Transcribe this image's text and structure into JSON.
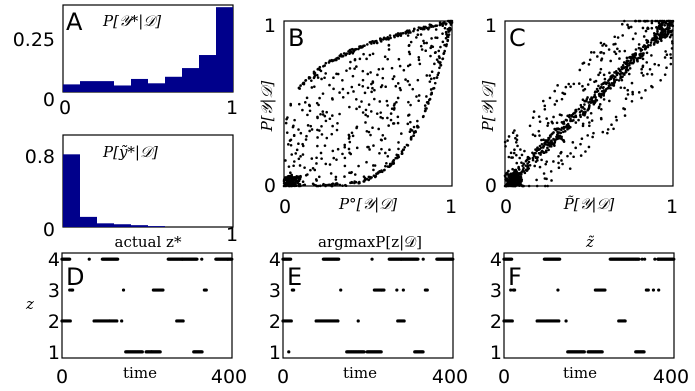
{
  "colors": {
    "bar": "#00008b",
    "point": "#000000",
    "axis": "#000000"
  },
  "chart_data": [
    {
      "panel": "A",
      "type": "bar",
      "title": "P[𝒴*|𝒟]",
      "bins": [
        0.05,
        0.15,
        0.25,
        0.35,
        0.45,
        0.55,
        0.65,
        0.75,
        0.85,
        0.95
      ],
      "values": [
        0.035,
        0.05,
        0.05,
        0.03,
        0.06,
        0.04,
        0.07,
        0.11,
        0.17,
        0.39
      ],
      "xlim": [
        0,
        1
      ],
      "ylim": [
        0,
        0.4
      ],
      "xticks": [
        "0",
        "1"
      ],
      "yticks": [
        "0",
        "0.25"
      ]
    },
    {
      "panel": "A2",
      "type": "bar",
      "title": "P[ỹ*|𝒟]",
      "bins": [
        0.05,
        0.15,
        0.25,
        0.35,
        0.45,
        0.55,
        0.65,
        0.75,
        0.85,
        0.95
      ],
      "values": [
        0.79,
        0.11,
        0.04,
        0.03,
        0.02,
        0.01,
        0.0,
        0.0,
        0.0,
        0.0
      ],
      "xlim": [
        0,
        1
      ],
      "ylim": [
        0,
        1.0
      ],
      "xticks": [
        "0",
        "1"
      ],
      "yticks": [
        "0",
        "0.8"
      ]
    },
    {
      "panel": "B",
      "type": "scatter",
      "xlabel": "P°[𝒴|𝒟]",
      "ylabel": "P[𝒴|𝒟]",
      "xlim": [
        0,
        1
      ],
      "ylim": [
        0,
        1
      ],
      "xticks": [
        "0",
        "1"
      ],
      "yticks": [
        "0",
        "1"
      ]
    },
    {
      "panel": "C",
      "type": "scatter",
      "xlabel": "P̃[𝒴|𝒟]",
      "ylabel": "P[𝒴|𝒟]",
      "xlim": [
        0,
        1
      ],
      "ylim": [
        0,
        1
      ],
      "xticks": [
        "0",
        "1"
      ],
      "yticks": [
        "0",
        "1"
      ]
    },
    {
      "panel": "D",
      "type": "scatter",
      "title": "actual z*",
      "xlabel": "time",
      "ylabel": "z",
      "xlim": [
        0,
        400
      ],
      "ylim": [
        0.8,
        4.2
      ],
      "xticks": [
        "0",
        "400"
      ],
      "yticks": [
        "1",
        "2",
        "3",
        "4"
      ],
      "segments": [
        {
          "state": 4,
          "from": 0,
          "to": 18
        },
        {
          "state": 4,
          "from": 95,
          "to": 132
        },
        {
          "state": 4,
          "from": 250,
          "to": 318
        },
        {
          "state": 4,
          "from": 362,
          "to": 400
        },
        {
          "state": 3,
          "from": 22,
          "to": 26
        },
        {
          "state": 3,
          "from": 215,
          "to": 238
        },
        {
          "state": 3,
          "from": 335,
          "to": 340
        },
        {
          "state": 2,
          "from": 0,
          "to": 20
        },
        {
          "state": 2,
          "from": 78,
          "to": 130
        },
        {
          "state": 2,
          "from": 270,
          "to": 285
        },
        {
          "state": 1,
          "from": 150,
          "to": 190
        },
        {
          "state": 1,
          "from": 198,
          "to": 232
        },
        {
          "state": 1,
          "from": 310,
          "to": 330
        }
      ]
    },
    {
      "panel": "E",
      "type": "scatter",
      "title": "argmaxP[z|𝒟]",
      "xlabel": "time",
      "ylabel": "",
      "xlim": [
        0,
        400
      ],
      "ylim": [
        0.8,
        4.2
      ],
      "xticks": [
        "0",
        "400"
      ],
      "yticks": [
        "1",
        "2",
        "3",
        "4"
      ],
      "segments": [
        {
          "state": 4,
          "from": 0,
          "to": 18
        },
        {
          "state": 4,
          "from": 95,
          "to": 132
        },
        {
          "state": 4,
          "from": 250,
          "to": 318
        },
        {
          "state": 4,
          "from": 362,
          "to": 400
        },
        {
          "state": 3,
          "from": 22,
          "to": 26
        },
        {
          "state": 3,
          "from": 215,
          "to": 238
        },
        {
          "state": 3,
          "from": 335,
          "to": 340
        },
        {
          "state": 2,
          "from": 0,
          "to": 20
        },
        {
          "state": 2,
          "from": 78,
          "to": 130
        },
        {
          "state": 2,
          "from": 270,
          "to": 285
        },
        {
          "state": 1,
          "from": 150,
          "to": 190
        },
        {
          "state": 1,
          "from": 198,
          "to": 232
        },
        {
          "state": 1,
          "from": 310,
          "to": 330
        }
      ]
    },
    {
      "panel": "F",
      "type": "scatter",
      "title": "z̃",
      "xlabel": "time",
      "ylabel": "",
      "xlim": [
        0,
        400
      ],
      "ylim": [
        0.8,
        4.2
      ],
      "xticks": [
        "0",
        "400"
      ],
      "yticks": [
        "1",
        "2",
        "3",
        "4"
      ],
      "segments": [
        {
          "state": 4,
          "from": 0,
          "to": 18
        },
        {
          "state": 4,
          "from": 95,
          "to": 132
        },
        {
          "state": 4,
          "from": 250,
          "to": 318
        },
        {
          "state": 4,
          "from": 362,
          "to": 400
        },
        {
          "state": 3,
          "from": 22,
          "to": 26
        },
        {
          "state": 3,
          "from": 215,
          "to": 238
        },
        {
          "state": 3,
          "from": 335,
          "to": 340
        },
        {
          "state": 2,
          "from": 0,
          "to": 20
        },
        {
          "state": 2,
          "from": 78,
          "to": 130
        },
        {
          "state": 2,
          "from": 270,
          "to": 285
        },
        {
          "state": 1,
          "from": 150,
          "to": 190
        },
        {
          "state": 1,
          "from": 198,
          "to": 232
        },
        {
          "state": 1,
          "from": 310,
          "to": 330
        }
      ]
    }
  ]
}
